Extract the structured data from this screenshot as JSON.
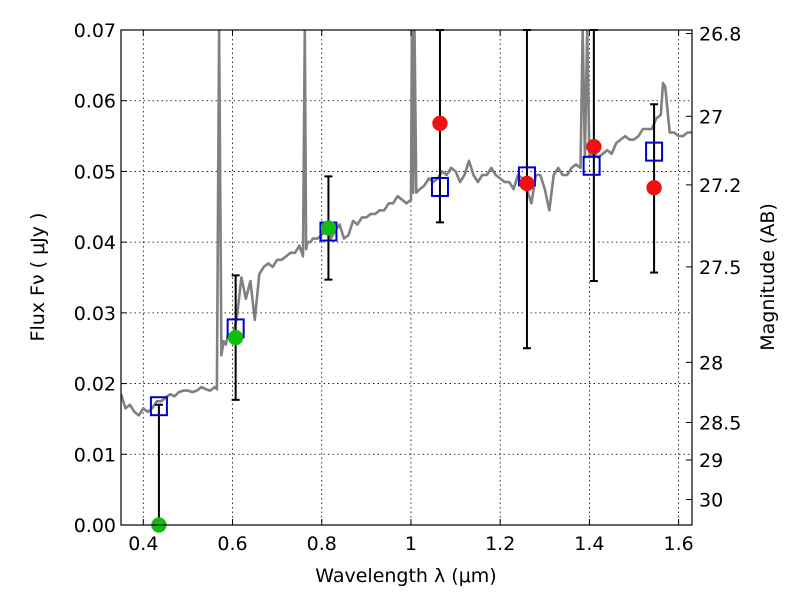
{
  "chart_data": {
    "type": "scatter",
    "title": "",
    "xlabel": "Wavelength  λ (μm)",
    "ylabel": "Flux  Fν  ( μJy )",
    "ylabel_right": "Magnitude (AB)",
    "xlim": [
      0.35,
      1.63
    ],
    "ylim": [
      0.0,
      0.07
    ],
    "grid": true,
    "x_ticks": [
      0.4,
      0.6,
      0.8,
      1.0,
      1.2,
      1.4,
      1.6
    ],
    "x_tick_labels": [
      "0.4",
      "0.6",
      "0.8",
      "1",
      "1.2",
      "1.4",
      "1.6"
    ],
    "y_ticks": [
      0.0,
      0.01,
      0.02,
      0.03,
      0.04,
      0.05,
      0.06,
      0.07
    ],
    "y_tick_labels": [
      "0.00",
      "0.01",
      "0.02",
      "0.03",
      "0.04",
      "0.05",
      "0.06",
      "0.07"
    ],
    "right_ticks": [
      {
        "label": "26.8",
        "flux": 0.0695
      },
      {
        "label": "27",
        "flux": 0.0578
      },
      {
        "label": "27.2",
        "flux": 0.0481
      },
      {
        "label": "27.5",
        "flux": 0.0365
      },
      {
        "label": "28",
        "flux": 0.023
      },
      {
        "label": "28.5",
        "flux": 0.0145
      },
      {
        "label": "29",
        "flux": 0.0092
      },
      {
        "label": "30",
        "flux": 0.0036
      }
    ],
    "colors": {
      "model": "#808080",
      "square": "#0000cc",
      "observed_red": "#ee1111",
      "observed_green": "#11bb11",
      "errorbar": "#000000"
    },
    "series": [
      {
        "kind": "line",
        "x": [
          0.35,
          0.36,
          0.37,
          0.38,
          0.39,
          0.4,
          0.41,
          0.42,
          0.43,
          0.44,
          0.45,
          0.46,
          0.47,
          0.48,
          0.49,
          0.5,
          0.51,
          0.52,
          0.53,
          0.54,
          0.55,
          0.56,
          0.565,
          0.57,
          0.575,
          0.58,
          0.585,
          0.59,
          0.6,
          0.61,
          0.62,
          0.63,
          0.64,
          0.65,
          0.66,
          0.67,
          0.68,
          0.69,
          0.7,
          0.71,
          0.72,
          0.73,
          0.74,
          0.75,
          0.758,
          0.762,
          0.765,
          0.768,
          0.775,
          0.78,
          0.79,
          0.8,
          0.81,
          0.82,
          0.83,
          0.84,
          0.85,
          0.86,
          0.87,
          0.88,
          0.89,
          0.9,
          0.91,
          0.92,
          0.93,
          0.94,
          0.95,
          0.96,
          0.97,
          0.98,
          0.99,
          1.0,
          1.002,
          1.005,
          1.008,
          1.012,
          1.02,
          1.03,
          1.04,
          1.05,
          1.06,
          1.07,
          1.08,
          1.09,
          1.1,
          1.11,
          1.12,
          1.13,
          1.14,
          1.15,
          1.16,
          1.17,
          1.18,
          1.19,
          1.2,
          1.21,
          1.22,
          1.23,
          1.24,
          1.25,
          1.26,
          1.27,
          1.28,
          1.29,
          1.3,
          1.31,
          1.32,
          1.33,
          1.34,
          1.35,
          1.36,
          1.37,
          1.38,
          1.385,
          1.39,
          1.395,
          1.4,
          1.41,
          1.42,
          1.43,
          1.44,
          1.45,
          1.46,
          1.47,
          1.48,
          1.49,
          1.5,
          1.51,
          1.52,
          1.53,
          1.54,
          1.55,
          1.56,
          1.565,
          1.57,
          1.58,
          1.59,
          1.6,
          1.61,
          1.62,
          1.63
        ],
        "y": [
          0.0185,
          0.0165,
          0.017,
          0.016,
          0.0155,
          0.0165,
          0.016,
          0.0165,
          0.0175,
          0.0175,
          0.018,
          0.0185,
          0.0182,
          0.0188,
          0.019,
          0.019,
          0.0188,
          0.019,
          0.0195,
          0.0192,
          0.019,
          0.0195,
          0.0192,
          0.07,
          0.024,
          0.026,
          0.0255,
          0.027,
          0.0265,
          0.0295,
          0.035,
          0.032,
          0.0345,
          0.029,
          0.0355,
          0.0365,
          0.037,
          0.0365,
          0.0375,
          0.0375,
          0.038,
          0.0385,
          0.0385,
          0.0395,
          0.038,
          0.07,
          0.039,
          0.04,
          0.04,
          0.0405,
          0.0405,
          0.041,
          0.042,
          0.0405,
          0.0415,
          0.0425,
          0.0405,
          0.041,
          0.043,
          0.0425,
          0.0435,
          0.0435,
          0.044,
          0.044,
          0.0445,
          0.0445,
          0.0455,
          0.0455,
          0.0465,
          0.046,
          0.0455,
          0.046,
          0.07,
          0.047,
          0.07,
          0.047,
          0.0475,
          0.048,
          0.049,
          0.0485,
          0.049,
          0.05,
          0.0495,
          0.0505,
          0.05,
          0.0485,
          0.0495,
          0.0515,
          0.0495,
          0.0485,
          0.0495,
          0.0495,
          0.0505,
          0.0495,
          0.049,
          0.0485,
          0.0485,
          0.0475,
          0.0495,
          0.049,
          0.0475,
          0.0455,
          0.0495,
          0.0495,
          0.0475,
          0.0445,
          0.0495,
          0.0505,
          0.0495,
          0.0495,
          0.0505,
          0.051,
          0.0505,
          0.07,
          0.052,
          0.07,
          0.052,
          0.0525,
          0.052,
          0.0525,
          0.053,
          0.0525,
          0.054,
          0.0545,
          0.055,
          0.0545,
          0.0545,
          0.055,
          0.056,
          0.056,
          0.056,
          0.0575,
          0.058,
          0.0625,
          0.062,
          0.0555,
          0.0555,
          0.055,
          0.055,
          0.0555,
          0.0555
        ]
      },
      {
        "kind": "observed",
        "points": [
          {
            "x": 0.435,
            "y": 0.0,
            "err_low": 0.0,
            "err_high": 0.017,
            "color": "green"
          },
          {
            "x": 0.607,
            "y": 0.0265,
            "err_low": 0.0177,
            "err_high": 0.0353,
            "color": "green"
          },
          {
            "x": 0.815,
            "y": 0.042,
            "err_low": 0.0347,
            "err_high": 0.0493,
            "color": "green"
          },
          {
            "x": 1.065,
            "y": 0.0568,
            "err_low": 0.0428,
            "err_high": 0.07,
            "color": "red"
          },
          {
            "x": 1.26,
            "y": 0.0483,
            "err_low": 0.025,
            "err_high": 0.07,
            "color": "red"
          },
          {
            "x": 1.41,
            "y": 0.0535,
            "err_low": 0.0345,
            "err_high": 0.07,
            "color": "red"
          },
          {
            "x": 1.545,
            "y": 0.0477,
            "err_low": 0.0357,
            "err_high": 0.0595,
            "color": "red"
          }
        ]
      },
      {
        "kind": "model_photometry",
        "points": [
          {
            "x": 0.435,
            "y": 0.0168
          },
          {
            "x": 0.607,
            "y": 0.0278
          },
          {
            "x": 0.815,
            "y": 0.0415
          },
          {
            "x": 1.065,
            "y": 0.0478
          },
          {
            "x": 1.26,
            "y": 0.0493
          },
          {
            "x": 1.405,
            "y": 0.0508
          },
          {
            "x": 1.545,
            "y": 0.0528
          }
        ]
      }
    ]
  }
}
